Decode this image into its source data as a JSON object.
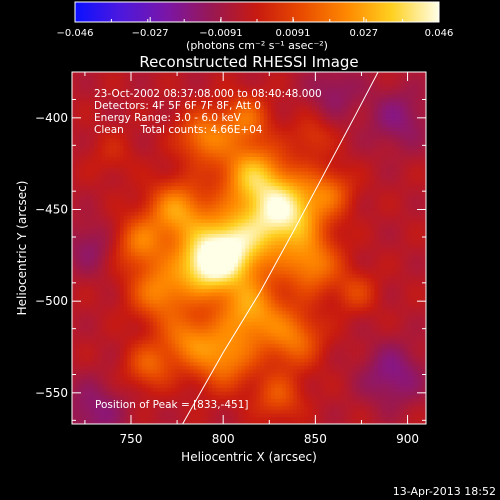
{
  "chart_data": {
    "type": "heatmap",
    "title": "Reconstructed RHESSI Image",
    "xlabel": "Heliocentric X (arcsec)",
    "ylabel": "Heliocentric Y (arcsec)",
    "xlim": [
      718,
      910
    ],
    "ylim": [
      -567,
      -375
    ],
    "x_ticks": [
      750,
      800,
      850,
      900
    ],
    "y_ticks": [
      -400,
      -450,
      -500,
      -550
    ],
    "colorbar": {
      "min": -0.046,
      "max": 0.046,
      "tick_values": [
        -0.046,
        -0.027,
        -0.0091,
        0.0091,
        0.027,
        0.046
      ],
      "tick_labels": [
        "−0.046",
        "−0.027",
        "−0.0091",
        "0.0091",
        "0.027",
        "0.046"
      ],
      "unit_label": "(photons cm⁻² s⁻¹ asec⁻²)",
      "colormap": "blue-purple-red-orange-yellow-white"
    },
    "annotations": [
      "23-Oct-2002 08:37:08.000 to 08:40:48.000",
      "Detectors: 4F 5F 6F 7F 8F, Att 0",
      "Energy Range: 3.0 - 6.0 keV",
      "Clean     Total counts: 4.66E+04"
    ],
    "peak_label": "Position of Peak = [833,-451]",
    "peak": [
      833,
      -451
    ],
    "limb_curve": [
      [
        778,
        -567
      ],
      [
        800,
        -528
      ],
      [
        820,
        -495
      ],
      [
        838,
        -462
      ],
      [
        855,
        -430
      ],
      [
        872,
        -398
      ],
      [
        884,
        -375
      ]
    ],
    "blobs": [
      {
        "x": 833,
        "y": -451,
        "amp": 0.046,
        "sigma": 14
      },
      {
        "x": 805,
        "y": -470,
        "amp": 0.04,
        "sigma": 14
      },
      {
        "x": 790,
        "y": -480,
        "amp": 0.037,
        "sigma": 12
      },
      {
        "x": 815,
        "y": -430,
        "amp": 0.03,
        "sigma": 12
      },
      {
        "x": 775,
        "y": -450,
        "amp": 0.028,
        "sigma": 11
      },
      {
        "x": 790,
        "y": -410,
        "amp": 0.024,
        "sigma": 10
      },
      {
        "x": 812,
        "y": -400,
        "amp": 0.02,
        "sigma": 9
      },
      {
        "x": 755,
        "y": -468,
        "amp": 0.022,
        "sigma": 10
      },
      {
        "x": 765,
        "y": -495,
        "amp": 0.024,
        "sigma": 11
      },
      {
        "x": 848,
        "y": -480,
        "amp": 0.024,
        "sigma": 11
      },
      {
        "x": 815,
        "y": -505,
        "amp": 0.028,
        "sigma": 12
      },
      {
        "x": 800,
        "y": -530,
        "amp": 0.026,
        "sigma": 12
      },
      {
        "x": 838,
        "y": -520,
        "amp": 0.022,
        "sigma": 11
      },
      {
        "x": 760,
        "y": -535,
        "amp": 0.018,
        "sigma": 9
      },
      {
        "x": 830,
        "y": -552,
        "amp": 0.016,
        "sigma": 9
      },
      {
        "x": 780,
        "y": -520,
        "amp": 0.02,
        "sigma": 10
      },
      {
        "x": 858,
        "y": -440,
        "amp": 0.016,
        "sigma": 9
      },
      {
        "x": 872,
        "y": -495,
        "amp": 0.012,
        "sigma": 8
      },
      {
        "x": 848,
        "y": -410,
        "amp": 0.01,
        "sigma": 8
      },
      {
        "x": 740,
        "y": -420,
        "amp": 0.006,
        "sigma": 9
      },
      {
        "x": 892,
        "y": -540,
        "amp": -0.014,
        "sigma": 12
      },
      {
        "x": 895,
        "y": -400,
        "amp": -0.012,
        "sigma": 12
      },
      {
        "x": 730,
        "y": -560,
        "amp": -0.012,
        "sigma": 12
      },
      {
        "x": 728,
        "y": -470,
        "amp": -0.01,
        "sigma": 10
      },
      {
        "x": 860,
        "y": -385,
        "amp": -0.01,
        "sigma": 10
      }
    ]
  },
  "footer": {
    "date": "13-Apr-2013 18:52"
  }
}
